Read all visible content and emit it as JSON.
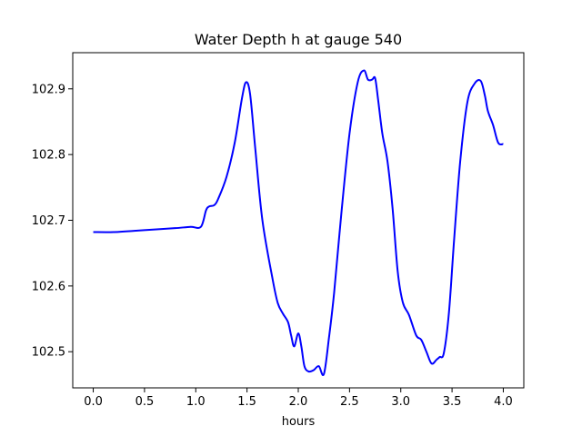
{
  "chart_data": {
    "type": "line",
    "title": "Water Depth h at gauge 540",
    "xlabel": "hours",
    "ylabel": "",
    "xlim": [
      -0.2,
      4.2
    ],
    "ylim": [
      102.445,
      102.955
    ],
    "xticks": [
      0.0,
      0.5,
      1.0,
      1.5,
      2.0,
      2.5,
      3.0,
      3.5,
      4.0
    ],
    "xtick_labels": [
      "0.0",
      "0.5",
      "1.0",
      "1.5",
      "2.0",
      "2.5",
      "3.0",
      "3.5",
      "4.0"
    ],
    "yticks": [
      102.5,
      102.6,
      102.7,
      102.8,
      102.9
    ],
    "ytick_labels": [
      "102.5",
      "102.6",
      "102.7",
      "102.8",
      "102.9"
    ],
    "grid": false,
    "series": [
      {
        "color": "#0000ff",
        "x": [
          0.0,
          0.2,
          0.4,
          0.6,
          0.8,
          0.95,
          1.05,
          1.1,
          1.13,
          1.18,
          1.22,
          1.3,
          1.38,
          1.45,
          1.49,
          1.53,
          1.58,
          1.65,
          1.75,
          1.8,
          1.85,
          1.9,
          1.93,
          1.96,
          2.0,
          2.03,
          2.06,
          2.1,
          2.15,
          2.2,
          2.25,
          2.3,
          2.35,
          2.42,
          2.5,
          2.58,
          2.64,
          2.68,
          2.72,
          2.75,
          2.78,
          2.82,
          2.87,
          2.92,
          2.97,
          3.02,
          3.08,
          3.15,
          3.2,
          3.25,
          3.3,
          3.35,
          3.38,
          3.42,
          3.47,
          3.52,
          3.58,
          3.65,
          3.72,
          3.78,
          3.82,
          3.85,
          3.9,
          3.95,
          4.0
        ],
        "y": [
          102.682,
          102.682,
          102.684,
          102.686,
          102.688,
          102.69,
          102.69,
          102.715,
          102.721,
          102.723,
          102.733,
          102.766,
          102.818,
          102.885,
          102.91,
          102.892,
          102.81,
          102.7,
          102.61,
          102.574,
          102.558,
          102.545,
          102.525,
          102.508,
          102.528,
          102.508,
          102.478,
          102.47,
          102.472,
          102.478,
          102.466,
          102.522,
          102.59,
          102.71,
          102.832,
          102.91,
          102.928,
          102.914,
          102.914,
          102.916,
          102.882,
          102.832,
          102.79,
          102.718,
          102.622,
          102.575,
          102.556,
          102.525,
          102.518,
          102.5,
          102.482,
          102.488,
          102.492,
          102.498,
          102.56,
          102.67,
          102.79,
          102.88,
          102.908,
          102.912,
          102.89,
          102.866,
          102.845,
          102.818,
          102.816
        ]
      }
    ]
  }
}
